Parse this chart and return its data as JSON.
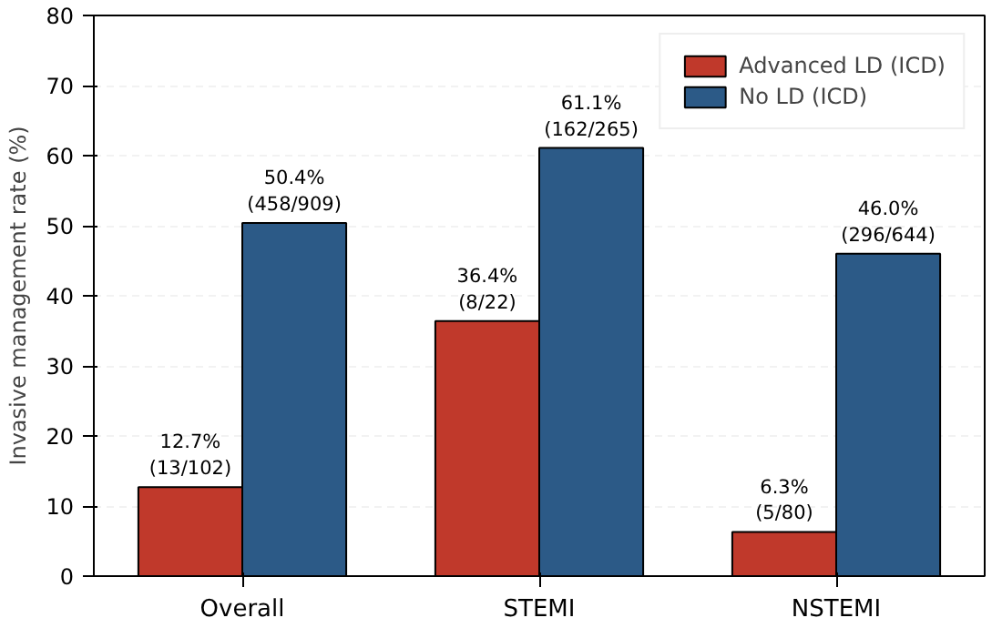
{
  "chart_data": {
    "type": "bar",
    "ylabel": "Invasive management rate (%)",
    "categories": [
      "Overall",
      "STEMI",
      "NSTEMI"
    ],
    "series": [
      {
        "name": "Advanced LD (ICD)",
        "color": "#c0392b",
        "values": [
          12.7,
          36.4,
          6.3
        ],
        "value_labels": [
          "12.7%\n(13/102)",
          "36.4%\n(8/22)",
          "6.3%\n(5/80)"
        ]
      },
      {
        "name": "No LD (ICD)",
        "color": "#2c5a87",
        "values": [
          50.4,
          61.1,
          46.0
        ],
        "value_labels": [
          "50.4%\n(458/909)",
          "61.1%\n(162/265)",
          "46.0%\n(296/644)"
        ]
      }
    ],
    "ylim": [
      0,
      80
    ],
    "yticks": [
      0,
      10,
      20,
      30,
      40,
      50,
      60,
      70,
      80
    ],
    "grid": "y",
    "legend": "top right"
  }
}
